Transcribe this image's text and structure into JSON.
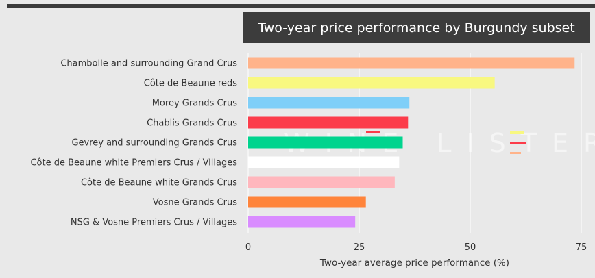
{
  "chart_data": {
    "type": "bar",
    "orientation": "horizontal",
    "title": "Two-year price performance by Burgundy subset",
    "xlabel": "Two-year average price performance (%)",
    "ylabel": "",
    "xlim": [
      0,
      75
    ],
    "xticks": [
      "0",
      "25",
      "50",
      "75"
    ],
    "xtick_values": [
      0,
      25,
      50,
      75
    ],
    "grid": true,
    "categories": [
      "Chambolle and surrounding Grand Crus",
      "Côte de Beaune reds",
      "Morey Grands Crus",
      "Chablis Grands Crus",
      "Gevrey and surrounding Grands Crus",
      "Côte de Beaune white Premiers Crus / Villages",
      "Côte de Beaune white Grands Crus",
      "Vosne Grands Crus",
      "NSG & Vosne Premiers Crus / Villages"
    ],
    "values": [
      73.5,
      55.5,
      36.3,
      36.0,
      34.8,
      34.0,
      33.0,
      26.5,
      24.1
    ],
    "colors": [
      "#ffb38a",
      "#f8f880",
      "#7fcff8",
      "#fc3c4a",
      "#00d48e",
      "#ffffff",
      "#ffb7bd",
      "#ff843b",
      "#d98cff"
    ]
  },
  "watermark": {
    "text": "WINE LISTER",
    "accent_colors": [
      "#f8f880",
      "#fc3c4a",
      "#ffb38a"
    ]
  }
}
